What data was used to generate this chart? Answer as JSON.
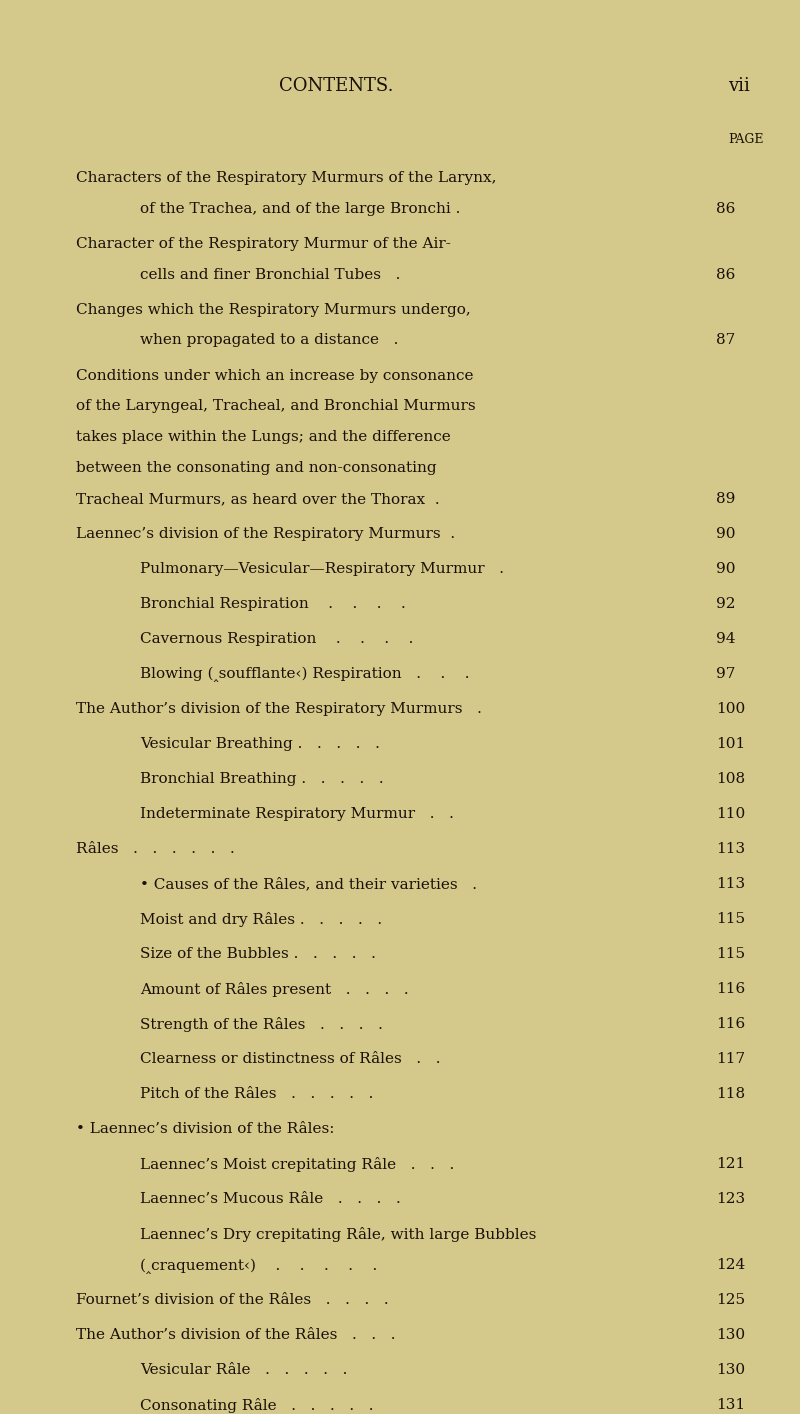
{
  "bg_color": "#d4c98a",
  "text_color": "#1a1008",
  "title": "CONTENTS.",
  "page_num_header": "vii",
  "page_label": "PAGE",
  "figsize": [
    8.0,
    14.14
  ],
  "dpi": 100,
  "entries": [
    {
      "lines": [
        "Characters of the Respiratory Murmurs of the Larynx,",
        "of the Trachea, and of the large Bronchi ."
      ],
      "page": "86",
      "indent": 0,
      "continuation": true,
      "continuation_indent": 1
    },
    {
      "lines": [
        "Character of the Respiratory Murmur of the Air-",
        "cells and finer Bronchial Tubes   ."
      ],
      "page": "86",
      "indent": 0,
      "continuation": true,
      "continuation_indent": 1
    },
    {
      "lines": [
        "Changes which the Respiratory Murmurs undergo,",
        "when propagated to a distance   ."
      ],
      "page": "87",
      "indent": 0,
      "continuation": true,
      "continuation_indent": 1
    },
    {
      "lines": [
        "Conditions under which an increase by consonance",
        "of the Laryngeal, Tracheal, and Bronchial Murmurs",
        "takes place within the Lungs; and the difference",
        "between the consonating and non-consonating",
        "Tracheal Murmurs, as heard over the Thorax  ."
      ],
      "page": "89",
      "indent": 0,
      "continuation": true,
      "continuation_indent": 0
    },
    {
      "lines": [
        "Laennec’s division of the Respiratory Murmurs  ."
      ],
      "page": "90",
      "indent": 0,
      "continuation": false,
      "continuation_indent": 0
    },
    {
      "lines": [
        "Pulmonary—Vesicular—Respiratory Murmur   ."
      ],
      "page": "90",
      "indent": 1,
      "continuation": false,
      "continuation_indent": 0
    },
    {
      "lines": [
        "Bronchial Respiration    .    .    .    ."
      ],
      "page": "92",
      "indent": 1,
      "continuation": false,
      "continuation_indent": 0
    },
    {
      "lines": [
        "Cavernous Respiration    .    .    .    ."
      ],
      "page": "94",
      "indent": 1,
      "continuation": false,
      "continuation_indent": 0
    },
    {
      "lines": [
        "Blowing (‸soufflante‹) Respiration   .    .    ."
      ],
      "page": "97",
      "indent": 1,
      "continuation": false,
      "continuation_indent": 0
    },
    {
      "lines": [
        "The Author’s division of the Respiratory Murmurs   ."
      ],
      "page": "100",
      "indent": 0,
      "continuation": false,
      "continuation_indent": 0
    },
    {
      "lines": [
        "Vesicular Breathing .   .   .   .   ."
      ],
      "page": "101",
      "indent": 1,
      "continuation": false,
      "continuation_indent": 0
    },
    {
      "lines": [
        "Bronchial Breathing .   .   .   .   ."
      ],
      "page": "108",
      "indent": 1,
      "continuation": false,
      "continuation_indent": 0
    },
    {
      "lines": [
        "Indeterminate Respiratory Murmur   .   ."
      ],
      "page": "110",
      "indent": 1,
      "continuation": false,
      "continuation_indent": 0
    },
    {
      "lines": [
        "Râles   .   .   .   .   .   ."
      ],
      "page": "113",
      "indent": 0,
      "continuation": false,
      "continuation_indent": 0
    },
    {
      "lines": [
        "• Causes of the Râles, and their varieties   ."
      ],
      "page": "113",
      "indent": 1,
      "continuation": false,
      "continuation_indent": 0,
      "bullet": true
    },
    {
      "lines": [
        "Moist and dry Râles .   .   .   .   ."
      ],
      "page": "115",
      "indent": 1,
      "continuation": false,
      "continuation_indent": 0
    },
    {
      "lines": [
        "Size of the Bubbles .   .   .   .   ."
      ],
      "page": "115",
      "indent": 1,
      "continuation": false,
      "continuation_indent": 0
    },
    {
      "lines": [
        "Amount of Râles present   .   .   .   ."
      ],
      "page": "116",
      "indent": 1,
      "continuation": false,
      "continuation_indent": 0
    },
    {
      "lines": [
        "Strength of the Râles   .   .   .   ."
      ],
      "page": "116",
      "indent": 1,
      "continuation": false,
      "continuation_indent": 0
    },
    {
      "lines": [
        "Clearness or distinctness of Râles   .   ."
      ],
      "page": "117",
      "indent": 1,
      "continuation": false,
      "continuation_indent": 0
    },
    {
      "lines": [
        "Pitch of the Râles   .   .   .   .   ."
      ],
      "page": "118",
      "indent": 1,
      "continuation": false,
      "continuation_indent": 0
    },
    {
      "lines": [
        "• Laennec’s division of the Râles:"
      ],
      "page": "",
      "indent": 0,
      "continuation": false,
      "continuation_indent": 0,
      "bullet": true,
      "no_page": true
    },
    {
      "lines": [
        "Laennec’s Moist crepitating Râle   .   .   ."
      ],
      "page": "121",
      "indent": 1,
      "continuation": false,
      "continuation_indent": 0
    },
    {
      "lines": [
        "Laennec’s Mucous Râle   .   .   .   ."
      ],
      "page": "123",
      "indent": 1,
      "continuation": false,
      "continuation_indent": 0
    },
    {
      "lines": [
        "Laennec’s Dry crepitating Râle, with large Bubbles",
        "(‸craquement‹)    .    .    .    .    ."
      ],
      "page": "124",
      "indent": 1,
      "continuation": true,
      "continuation_indent": 1
    },
    {
      "lines": [
        "Fournet’s division of the Râles   .   .   .   ."
      ],
      "page": "125",
      "indent": 0,
      "continuation": false,
      "continuation_indent": 0
    },
    {
      "lines": [
        "The Author’s division of the Râles   .   .   ."
      ],
      "page": "130",
      "indent": 0,
      "continuation": false,
      "continuation_indent": 0
    },
    {
      "lines": [
        "Vesicular Râle   .   .   .   .   ."
      ],
      "page": "130",
      "indent": 1,
      "continuation": false,
      "continuation_indent": 0
    },
    {
      "lines": [
        "Consonating Râle   .   .   .   .   ."
      ],
      "page": "131",
      "indent": 1,
      "continuation": false,
      "continuation_indent": 0
    }
  ]
}
